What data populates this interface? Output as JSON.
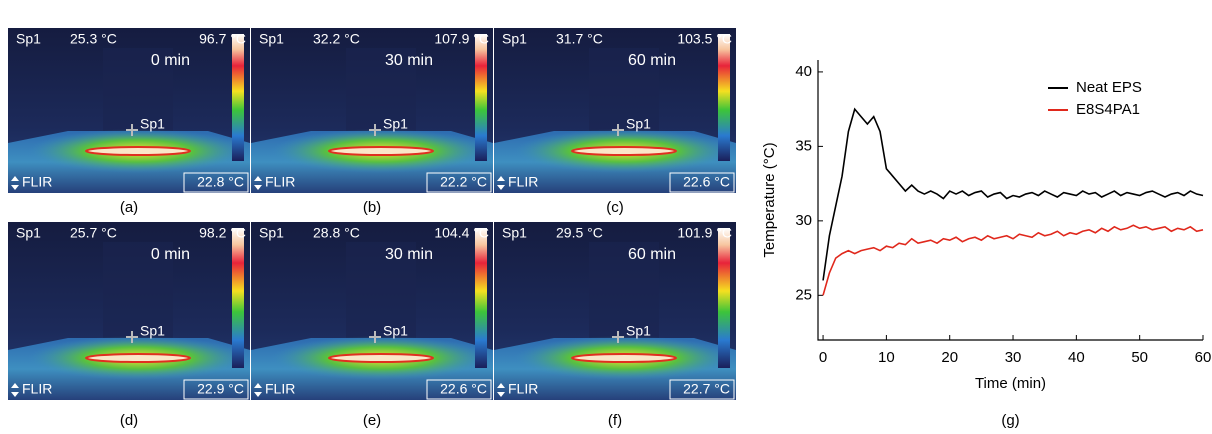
{
  "panels": [
    {
      "spot": "Sp1",
      "spot_temp": "25.3 °C",
      "max_temp": "96.7 °C",
      "time": "0 min",
      "marker": "Sp1",
      "brand": "FLIR",
      "min_temp": "22.8 °C",
      "caption": "(a)"
    },
    {
      "spot": "Sp1",
      "spot_temp": "32.2 °C",
      "max_temp": "107.9 °C",
      "time": "30 min",
      "marker": "Sp1",
      "brand": "FLIR",
      "min_temp": "22.2 °C",
      "caption": "(b)"
    },
    {
      "spot": "Sp1",
      "spot_temp": "31.7 °C",
      "max_temp": "103.5 °C",
      "time": "60 min",
      "marker": "Sp1",
      "brand": "FLIR",
      "min_temp": "22.6 °C",
      "caption": "(c)"
    },
    {
      "spot": "Sp1",
      "spot_temp": "25.7 °C",
      "max_temp": "98.2 °C",
      "time": "0 min",
      "marker": "Sp1",
      "brand": "FLIR",
      "min_temp": "22.9 °C",
      "caption": "(d)"
    },
    {
      "spot": "Sp1",
      "spot_temp": "28.8 °C",
      "max_temp": "104.4 °C",
      "time": "30 min",
      "marker": "Sp1",
      "brand": "FLIR",
      "min_temp": "22.6 °C",
      "caption": "(e)"
    },
    {
      "spot": "Sp1",
      "spot_temp": "29.5 °C",
      "max_temp": "101.9 °C",
      "time": "60 min",
      "marker": "Sp1",
      "brand": "FLIR",
      "min_temp": "22.7 °C",
      "caption": "(f)"
    }
  ],
  "chart_data": {
    "type": "line",
    "x_label": "Time (min)",
    "y_label": "Temperature (°C)",
    "caption": "(g)",
    "x": [
      0,
      1,
      2,
      3,
      4,
      5,
      6,
      7,
      8,
      9,
      10,
      11,
      12,
      13,
      14,
      15,
      16,
      17,
      18,
      19,
      20,
      21,
      22,
      23,
      24,
      25,
      26,
      27,
      28,
      29,
      30,
      31,
      32,
      33,
      34,
      35,
      36,
      37,
      38,
      39,
      40,
      41,
      42,
      43,
      44,
      45,
      46,
      47,
      48,
      49,
      50,
      51,
      52,
      53,
      54,
      55,
      56,
      57,
      58,
      59,
      60
    ],
    "series": [
      {
        "name": "Neat EPS",
        "color": "#000000",
        "values": [
          26,
          29,
          31,
          33,
          36,
          37.5,
          37,
          36.5,
          37,
          36,
          33.5,
          33,
          32.5,
          32,
          32.4,
          32,
          31.8,
          32,
          31.8,
          31.5,
          32,
          31.8,
          32,
          31.7,
          31.9,
          32,
          31.6,
          31.8,
          31.9,
          31.5,
          31.7,
          31.6,
          31.8,
          31.9,
          31.7,
          32,
          31.8,
          31.6,
          31.9,
          31.8,
          31.7,
          32,
          31.8,
          31.9,
          31.6,
          31.8,
          32,
          31.7,
          31.9,
          31.8,
          31.7,
          31.9,
          32,
          31.8,
          31.6,
          31.8,
          31.9,
          31.7,
          32,
          31.8,
          31.7
        ]
      },
      {
        "name": "E8S4PA1",
        "color": "#e0281c",
        "values": [
          25,
          26.5,
          27.5,
          27.8,
          28,
          27.8,
          28,
          28.1,
          28.2,
          28,
          28.3,
          28.2,
          28.5,
          28.4,
          28.8,
          28.5,
          28.6,
          28.7,
          28.5,
          28.8,
          28.7,
          28.9,
          28.6,
          28.8,
          28.9,
          28.7,
          29,
          28.8,
          28.9,
          29,
          28.8,
          29.1,
          29,
          28.9,
          29.2,
          29,
          29.1,
          29.3,
          29,
          29.2,
          29.1,
          29.3,
          29.4,
          29.2,
          29.5,
          29.3,
          29.6,
          29.4,
          29.5,
          29.7,
          29.5,
          29.6,
          29.4,
          29.5,
          29.6,
          29.3,
          29.5,
          29.4,
          29.6,
          29.3,
          29.4
        ]
      }
    ],
    "xlim": [
      -0.8,
      60
    ],
    "xticks": [
      0,
      10,
      20,
      30,
      40,
      50,
      60
    ],
    "ylim": [
      22,
      40.8
    ],
    "yticks": [
      25,
      30,
      35,
      40
    ],
    "legend": "top-right"
  }
}
